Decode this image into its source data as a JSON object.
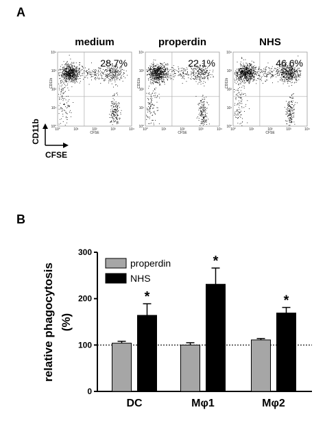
{
  "panel_a": {
    "letter": "A",
    "marker_y_label": "CD11b",
    "marker_x_label": "CFSE",
    "plots": [
      {
        "title": "medium",
        "percent": "28.7%"
      },
      {
        "title": "properdin",
        "percent": "22.1%"
      },
      {
        "title": "NHS",
        "percent": "46.6%"
      }
    ],
    "plot_axis": {
      "xlabel": "CFSE",
      "ylabel": "CD11b",
      "ticks": [
        "10°",
        "10¹",
        "10²",
        "10³",
        "10⁴"
      ]
    }
  },
  "panel_b": {
    "letter": "B"
  },
  "chart_data": {
    "type": "bar",
    "categories": [
      "DC",
      "Mφ1",
      "Mφ2"
    ],
    "series": [
      {
        "name": "properdin",
        "color": "#a6a6a6",
        "values": [
          104,
          100,
          111
        ],
        "errors": [
          4,
          5,
          3
        ],
        "significant": [
          false,
          false,
          false
        ]
      },
      {
        "name": "NHS",
        "color": "#000000",
        "values": [
          164,
          231,
          169
        ],
        "errors": [
          25,
          35,
          12
        ],
        "significant": [
          true,
          true,
          true
        ]
      }
    ],
    "significance_marker": "*",
    "xlabel": "",
    "ylabel": "relative phagocytosis\n(%)",
    "ylim": [
      0,
      300
    ],
    "yticks": [
      "0",
      "100",
      "200",
      "300"
    ],
    "reference_line": 100,
    "legend_position": "top-left"
  }
}
